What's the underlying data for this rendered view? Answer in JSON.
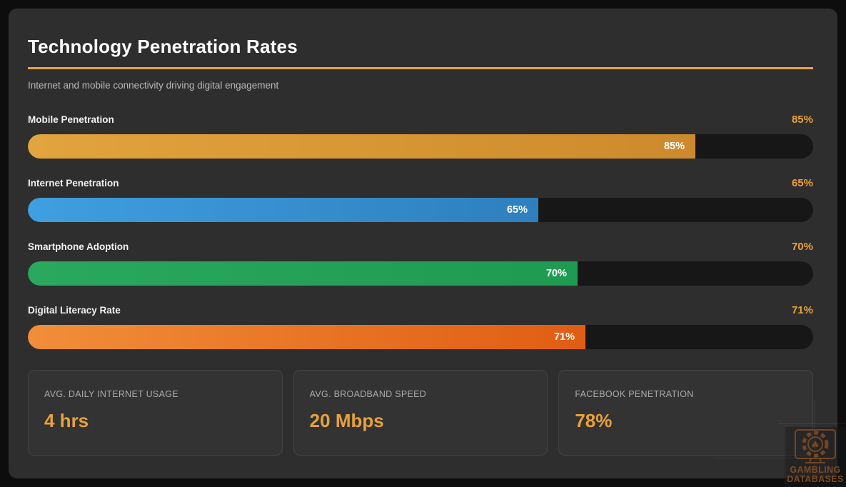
{
  "page": {
    "title": "Technology Penetration Rates",
    "subtitle": "Internet and mobile connectivity driving digital engagement"
  },
  "chart_data": {
    "type": "bar",
    "orientation": "horizontal",
    "title": "Technology Penetration Rates",
    "subtitle": "Internet and mobile connectivity driving digital engagement",
    "categories": [
      "Mobile Penetration",
      "Internet Penetration",
      "Smartphone Adoption",
      "Digital Literacy Rate"
    ],
    "values": [
      85,
      65,
      70,
      71
    ],
    "value_labels": [
      "85%",
      "65%",
      "70%",
      "71%"
    ],
    "unit": "%",
    "xlim": [
      0,
      100
    ],
    "grid": false,
    "legend": false
  },
  "bars": [
    {
      "label": "Mobile Penetration",
      "value": 85,
      "display": "85%",
      "color_start": "#e2a43e",
      "color_end": "#cd8a2d"
    },
    {
      "label": "Internet Penetration",
      "value": 65,
      "display": "65%",
      "color_start": "#3f9fe0",
      "color_end": "#2e7fbd"
    },
    {
      "label": "Smartphone Adoption",
      "value": 70,
      "display": "70%",
      "color_start": "#2aa85e",
      "color_end": "#1f9b51"
    },
    {
      "label": "Digital Literacy Rate",
      "value": 71,
      "display": "71%",
      "color_start": "#f18e3a",
      "color_end": "#e05d13"
    }
  ],
  "stats": [
    {
      "label": "AVG. DAILY INTERNET USAGE",
      "value": "4 hrs"
    },
    {
      "label": "AVG. BROADBAND SPEED",
      "value": "20 Mbps"
    },
    {
      "label": "FACEBOOK PENETRATION",
      "value": "78%"
    }
  ],
  "watermark": {
    "icon": "monitor-casino-chip-icon",
    "line1": "GAMBLING",
    "line2": "DATABASES"
  },
  "colors": {
    "page_background": "#0d0d0d",
    "panel_background": "#2e2e2e",
    "accent": "#e9a440",
    "value_text": "#e8a23c",
    "bar_track": "#171717",
    "watermark": "#7b4a26"
  }
}
